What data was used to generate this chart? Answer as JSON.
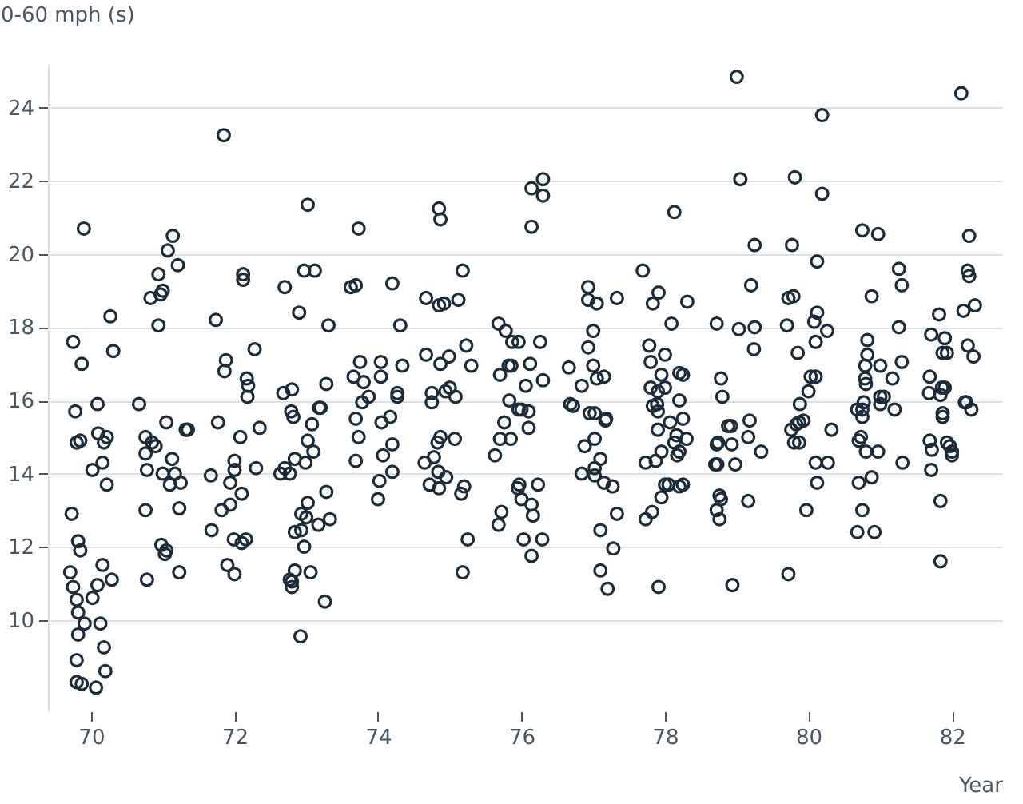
{
  "chart_data": {
    "type": "scatter",
    "xlabel": "Year",
    "ylabel": "0-60 mph (s)",
    "xlim": [
      69.4,
      82.7
    ],
    "ylim": [
      7.5,
      25.2
    ],
    "xticks": [
      70,
      72,
      74,
      76,
      78,
      80,
      82
    ],
    "yticks": [
      10,
      12,
      14,
      16,
      18,
      20,
      22,
      24
    ],
    "grid": "y",
    "marker": "circle",
    "series": [
      {
        "color": "#1c2b3a",
        "x": [
          69.9,
          69.75,
          69.87,
          70.27,
          70.31,
          70.09,
          69.78,
          69.8,
          69.85,
          70.1,
          70.22,
          70.18,
          70.16,
          70.02,
          70.22,
          69.73,
          69.82,
          69.85,
          69.71,
          69.75,
          69.8,
          69.82,
          69.91,
          70.13,
          70.02,
          70.09,
          70.16,
          70.29,
          69.82,
          70.18,
          69.8,
          69.8,
          69.87,
          70.07,
          70.2,
          70.94,
          70.83,
          70.97,
          71.0,
          71.07,
          71.14,
          71.21,
          70.94,
          70.67,
          70.76,
          70.85,
          70.9,
          70.76,
          70.78,
          71.05,
          71.32,
          71.35,
          71.13,
          71.0,
          71.17,
          71.1,
          71.25,
          70.76,
          71.23,
          70.98,
          71.05,
          71.03,
          71.23,
          70.78,
          71.85,
          71.74,
          71.88,
          71.86,
          72.28,
          72.12,
          72.12,
          72.17,
          72.19,
          72.18,
          71.77,
          72.08,
          72.35,
          72.0,
          72.0,
          72.3,
          71.67,
          71.94,
          72.1,
          71.82,
          71.94,
          71.68,
          71.99,
          72.1,
          72.16,
          71.9,
          72.0,
          73.02,
          72.97,
          73.12,
          72.7,
          72.9,
          73.31,
          72.68,
          72.8,
          73.28,
          73.18,
          73.2,
          72.79,
          72.82,
          73.08,
          73.02,
          73.1,
          72.84,
          72.99,
          72.64,
          72.7,
          72.77,
          73.02,
          72.93,
          73.0,
          73.17,
          73.33,
          73.28,
          72.84,
          72.93,
          72.97,
          72.84,
          73.06,
          72.77,
          72.8,
          72.8,
          73.26,
          72.92,
          73.62,
          73.73,
          73.69,
          74.2,
          74.31,
          73.75,
          74.04,
          73.66,
          73.8,
          74.04,
          74.34,
          73.78,
          73.87,
          74.27,
          74.27,
          73.69,
          73.73,
          74.05,
          74.17,
          73.69,
          74.07,
          74.2,
          74.02,
          74.2,
          74.0,
          74.85,
          74.87,
          75.18,
          74.67,
          74.85,
          74.92,
          75.12,
          74.67,
          74.87,
          74.99,
          75.23,
          75.3,
          74.75,
          74.94,
          75.0,
          75.08,
          74.75,
          74.78,
          74.83,
          74.87,
          75.07,
          74.65,
          74.84,
          74.72,
          74.85,
          74.95,
          75.2,
          75.16,
          75.25,
          75.18,
          76.14,
          76.3,
          76.3,
          76.14,
          75.68,
          75.78,
          75.87,
          75.96,
          76.26,
          75.7,
          75.82,
          75.86,
          76.12,
          76.06,
          76.3,
          75.83,
          76.0,
          76.1,
          75.96,
          76.1,
          75.76,
          75.7,
          75.85,
          75.63,
          75.97,
          75.95,
          76.0,
          76.14,
          76.16,
          76.23,
          75.72,
          75.68,
          76.03,
          76.14,
          76.29,
          76.93,
          76.93,
          77.05,
          77.33,
          77.0,
          76.93,
          76.66,
          77.0,
          76.84,
          77.05,
          77.15,
          76.72,
          76.95,
          77.02,
          77.18,
          76.68,
          77.17,
          76.88,
          77.02,
          77.1,
          77.02,
          77.02,
          76.84,
          77.15,
          77.27,
          77.33,
          77.1,
          77.28,
          77.1,
          77.2,
          77.69,
          77.91,
          77.83,
          78.09,
          78.31,
          78.13,
          77.78,
          77.8,
          78.0,
          77.95,
          78.2,
          77.8,
          77.9,
          78.0,
          78.2,
          77.83,
          77.9,
          77.89,
          77.9,
          78.07,
          78.13,
          77.95,
          77.87,
          77.73,
          78.17,
          78.0,
          78.05,
          78.2,
          77.95,
          77.82,
          77.73,
          77.91,
          78.25,
          78.16,
          78.3,
          78.2,
          78.25,
          78.25,
          79.0,
          79.05,
          79.25,
          79.2,
          78.72,
          79.03,
          79.25,
          79.24,
          78.78,
          78.8,
          78.72,
          78.74,
          78.92,
          78.88,
          78.93,
          78.7,
          78.73,
          78.98,
          79.16,
          79.18,
          79.34,
          78.76,
          78.78,
          78.72,
          78.76,
          79.16,
          78.94,
          79.81,
          80.19,
          80.19,
          79.77,
          80.12,
          79.72,
          79.79,
          80.08,
          80.12,
          79.7,
          80.26,
          80.1,
          79.85,
          80.03,
          80.1,
          80.0,
          79.88,
          79.76,
          79.83,
          79.87,
          79.93,
          80.32,
          79.8,
          79.87,
          80.1,
          80.27,
          80.12,
          79.97,
          79.72,
          80.75,
          80.97,
          80.88,
          81.26,
          81.3,
          81.26,
          80.82,
          80.82,
          80.79,
          81.0,
          81.3,
          81.17,
          80.79,
          80.8,
          81.0,
          81.05,
          80.77,
          80.75,
          81.2,
          80.68,
          80.75,
          80.73,
          80.7,
          80.8,
          80.97,
          81.31,
          80.88,
          80.7,
          80.75,
          80.68,
          80.92,
          81.0,
          82.13,
          82.24,
          82.22,
          82.24,
          82.32,
          82.16,
          81.82,
          81.71,
          81.9,
          82.22,
          82.3,
          81.87,
          81.93,
          81.69,
          81.86,
          81.9,
          81.68,
          81.84,
          82.18,
          82.27,
          81.87,
          81.87,
          81.69,
          81.72,
          81.93,
          81.97,
          82.0,
          82.0,
          81.71,
          82.2,
          81.84,
          81.84
        ],
        "values": [
          20.7,
          17.6,
          17.0,
          18.3,
          17.35,
          15.9,
          15.7,
          14.85,
          14.9,
          15.1,
          15.0,
          14.85,
          14.3,
          14.1,
          13.7,
          12.9,
          12.15,
          11.9,
          11.3,
          10.9,
          10.55,
          10.2,
          9.9,
          9.9,
          10.6,
          10.95,
          11.5,
          11.1,
          9.6,
          9.25,
          8.9,
          8.3,
          8.25,
          8.15,
          8.6,
          19.45,
          18.8,
          18.9,
          19.0,
          20.1,
          20.5,
          19.7,
          18.05,
          15.9,
          15.0,
          14.85,
          14.75,
          14.55,
          14.1,
          15.4,
          15.2,
          15.2,
          14.4,
          14.0,
          14.0,
          13.7,
          13.75,
          13.0,
          13.05,
          12.05,
          11.9,
          11.8,
          11.3,
          11.1,
          23.25,
          18.2,
          17.1,
          16.8,
          17.4,
          19.45,
          19.3,
          16.6,
          16.4,
          16.1,
          15.4,
          15.0,
          15.25,
          14.35,
          14.1,
          14.15,
          13.95,
          13.75,
          13.45,
          13.0,
          13.15,
          12.45,
          12.2,
          12.1,
          12.2,
          11.5,
          11.25,
          21.35,
          19.55,
          19.55,
          19.1,
          18.4,
          18.05,
          16.2,
          16.3,
          16.45,
          15.8,
          15.8,
          15.7,
          15.55,
          15.35,
          14.9,
          14.6,
          14.4,
          14.3,
          14.0,
          14.15,
          14.0,
          13.2,
          12.9,
          12.8,
          12.6,
          12.75,
          13.5,
          12.4,
          12.45,
          12.0,
          11.35,
          11.3,
          11.1,
          10.9,
          11.05,
          10.5,
          9.55,
          19.1,
          20.7,
          19.15,
          19.2,
          18.05,
          17.05,
          17.05,
          16.65,
          16.5,
          16.65,
          16.95,
          15.95,
          16.1,
          16.2,
          16.1,
          15.5,
          15.0,
          15.4,
          15.55,
          14.35,
          14.5,
          14.8,
          13.8,
          14.05,
          13.3,
          21.25,
          20.95,
          19.55,
          18.8,
          18.6,
          18.65,
          18.75,
          17.25,
          17.0,
          17.2,
          17.5,
          16.95,
          16.2,
          16.25,
          16.35,
          16.1,
          15.95,
          14.45,
          14.85,
          15.0,
          14.95,
          14.3,
          14.05,
          13.7,
          13.6,
          13.9,
          13.65,
          13.45,
          12.2,
          11.3,
          21.8,
          22.05,
          21.6,
          20.75,
          18.1,
          17.9,
          17.6,
          17.6,
          17.6,
          16.7,
          16.95,
          16.95,
          17.0,
          16.4,
          16.55,
          16.0,
          15.75,
          15.7,
          15.75,
          15.25,
          15.4,
          14.95,
          14.95,
          14.5,
          13.7,
          13.6,
          13.3,
          13.15,
          12.85,
          13.7,
          12.95,
          12.6,
          12.2,
          11.75,
          12.2,
          19.1,
          18.75,
          18.65,
          18.8,
          17.9,
          17.45,
          16.9,
          16.95,
          16.4,
          16.6,
          16.65,
          15.85,
          15.65,
          15.65,
          15.5,
          15.9,
          15.45,
          14.75,
          14.95,
          14.4,
          14.15,
          13.95,
          14.0,
          13.75,
          13.65,
          12.9,
          12.45,
          11.95,
          11.35,
          10.85,
          19.55,
          18.95,
          18.65,
          18.1,
          18.7,
          21.15,
          17.5,
          17.05,
          17.25,
          16.7,
          16.75,
          16.35,
          16.25,
          16.35,
          16.0,
          15.85,
          15.7,
          15.9,
          15.2,
          15.4,
          14.85,
          14.6,
          14.35,
          14.3,
          14.5,
          13.7,
          13.7,
          13.65,
          13.35,
          12.95,
          12.75,
          10.9,
          15.5,
          15.05,
          14.95,
          14.6,
          13.7,
          16.7,
          24.85,
          22.05,
          20.25,
          19.15,
          18.1,
          17.95,
          18.0,
          17.4,
          16.6,
          16.1,
          14.8,
          14.85,
          15.3,
          15.3,
          14.8,
          14.25,
          14.25,
          14.25,
          15.0,
          15.45,
          14.6,
          13.4,
          13.3,
          13.0,
          12.75,
          13.25,
          10.95,
          22.1,
          23.8,
          21.65,
          20.25,
          19.8,
          18.8,
          18.85,
          18.15,
          18.4,
          18.05,
          17.9,
          17.6,
          17.3,
          16.65,
          16.65,
          16.25,
          15.9,
          15.2,
          15.35,
          15.4,
          15.45,
          15.2,
          14.85,
          14.85,
          14.3,
          14.3,
          13.75,
          13.0,
          11.25,
          20.65,
          20.55,
          18.85,
          19.6,
          19.15,
          18.0,
          17.65,
          17.25,
          16.95,
          16.95,
          17.05,
          16.6,
          16.6,
          16.45,
          16.1,
          16.1,
          15.95,
          15.75,
          15.75,
          15.75,
          15.55,
          15.0,
          14.9,
          14.6,
          14.6,
          14.3,
          13.9,
          13.75,
          13.0,
          12.4,
          12.4,
          15.9,
          24.4,
          20.5,
          19.55,
          19.4,
          18.6,
          18.45,
          18.35,
          17.8,
          17.7,
          17.5,
          17.2,
          17.3,
          17.3,
          16.65,
          16.35,
          16.35,
          16.2,
          16.15,
          15.95,
          15.75,
          15.65,
          15.55,
          14.9,
          14.65,
          14.85,
          14.75,
          14.6,
          14.5,
          14.1,
          15.95,
          13.25,
          11.6
        ]
      }
    ]
  }
}
